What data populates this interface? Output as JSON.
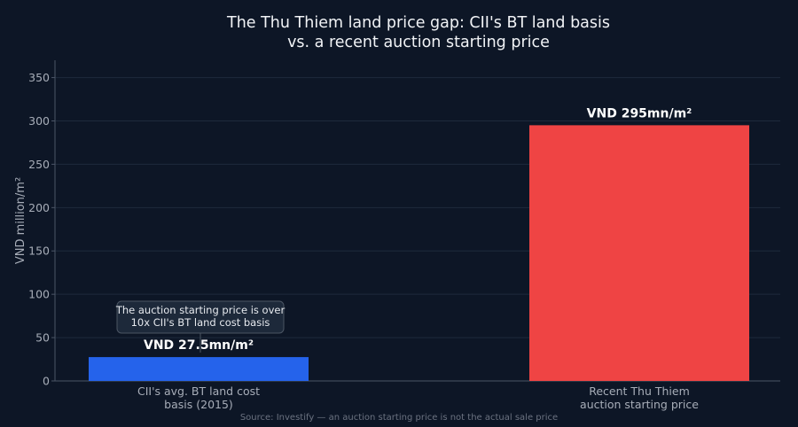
{
  "chart_data": {
    "type": "bar",
    "title_lines": [
      "The Thu Thiem land price gap: CII's BT land basis",
      "vs. a recent auction starting price"
    ],
    "ylabel": "VND million/m²",
    "xlabel": "",
    "ylim": [
      0,
      370
    ],
    "yticks": [
      0,
      50,
      100,
      150,
      200,
      250,
      300,
      350
    ],
    "grid": true,
    "categories": [
      [
        "CII's avg. BT land cost",
        "basis (2015)"
      ],
      [
        "Recent Thu Thiem",
        "auction starting price"
      ]
    ],
    "values": [
      27.5,
      295
    ],
    "value_labels": [
      "VND 27.5mn/m²",
      "VND 295mn/m²"
    ],
    "bar_colors": [
      "#2563eb",
      "#ef4444"
    ],
    "annotation": {
      "lines": [
        "The auction starting price is over",
        "10x CII's BT land cost basis"
      ]
    },
    "source": "Source: Investify — an auction starting price is not the actual sale price"
  },
  "colors": {
    "background": "#0d1626",
    "grid": "#1e2a3c",
    "axis": "#4b5566",
    "title": "#f1f3f6",
    "tick_label": "#a7adb8",
    "source": "#6b7280",
    "annotation_bg": "#1f2a3b",
    "annotation_border": "#4b5563",
    "annotation_text": "#e6e9ee",
    "value_label": "#ffffff"
  }
}
